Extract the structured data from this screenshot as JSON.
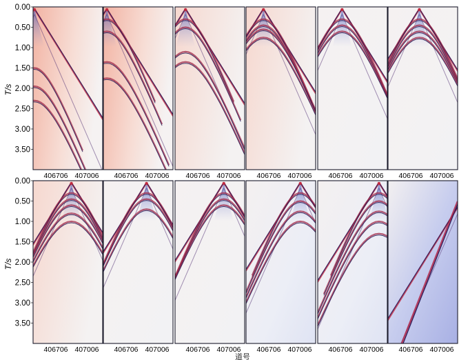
{
  "figure": {
    "y_axis_label": "T/s",
    "x_axis_label": "道号",
    "y_ticks": [
      "0.00",
      "0.50",
      "1.00",
      "1.50",
      "2.00",
      "2.50",
      "3.00",
      "3.50"
    ],
    "x_ticks": [
      "406706",
      "407006"
    ],
    "rows": 2,
    "panels_per_row": 6
  },
  "chart_data": {
    "type": "seismic-gather-grid",
    "ylabel": "T/s",
    "xlabel": "道号",
    "ylim": [
      0.0,
      4.0
    ],
    "y_ticks": [
      0.0,
      0.5,
      1.0,
      1.5,
      2.0,
      2.5,
      3.0,
      3.5
    ],
    "x_ticks": [
      "406706",
      "407006"
    ],
    "panels": [
      {
        "row": 1,
        "col": 1,
        "source_trace": 0.02,
        "apex_time": 0.05,
        "background": "red",
        "hyperbola_times": [
          1.5,
          1.95,
          2.3
        ]
      },
      {
        "row": 1,
        "col": 2,
        "source_trace": 0.05,
        "apex_time": 0.05,
        "background": "red",
        "hyperbola_times": [
          0.3,
          0.6,
          1.35,
          1.75
        ]
      },
      {
        "row": 1,
        "col": 3,
        "source_trace": 0.15,
        "apex_time": 0.05,
        "background": "light-red",
        "hyperbola_times": [
          0.3,
          0.5,
          1.1,
          1.35
        ]
      },
      {
        "row": 1,
        "col": 4,
        "source_trace": 0.25,
        "apex_time": 0.05,
        "background": "light-red",
        "hyperbola_times": [
          0.3,
          0.45,
          0.55,
          0.75
        ]
      },
      {
        "row": 1,
        "col": 5,
        "source_trace": 0.35,
        "apex_time": 0.05,
        "background": "light",
        "hyperbola_times": [
          0.3,
          0.45,
          0.6
        ]
      },
      {
        "row": 1,
        "col": 6,
        "source_trace": 0.45,
        "apex_time": 0.05,
        "background": "light",
        "hyperbola_times": [
          0.3,
          0.45,
          0.6,
          0.75
        ]
      },
      {
        "row": 2,
        "col": 1,
        "source_trace": 0.55,
        "apex_time": 0.05,
        "background": "light-red",
        "hyperbola_times": [
          0.3,
          0.45,
          0.6,
          0.8,
          1.0
        ]
      },
      {
        "row": 2,
        "col": 2,
        "source_trace": 0.62,
        "apex_time": 0.05,
        "background": "light",
        "hyperbola_times": [
          0.3,
          0.45,
          0.7
        ]
      },
      {
        "row": 2,
        "col": 3,
        "source_trace": 0.7,
        "apex_time": 0.05,
        "background": "light",
        "hyperbola_times": [
          0.3,
          0.45,
          0.6
        ]
      },
      {
        "row": 2,
        "col": 4,
        "source_trace": 0.78,
        "apex_time": 0.05,
        "background": "light-blue",
        "hyperbola_times": [
          0.3,
          0.5,
          0.75,
          1.0
        ]
      },
      {
        "row": 2,
        "col": 5,
        "source_trace": 0.88,
        "apex_time": 0.05,
        "background": "light-blue",
        "hyperbola_times": [
          0.3,
          0.5,
          0.75,
          1.0,
          1.3
        ]
      },
      {
        "row": 2,
        "col": 6,
        "source_trace": 1.02,
        "apex_time": 0.6,
        "background": "blue",
        "hyperbola_times": []
      }
    ]
  }
}
